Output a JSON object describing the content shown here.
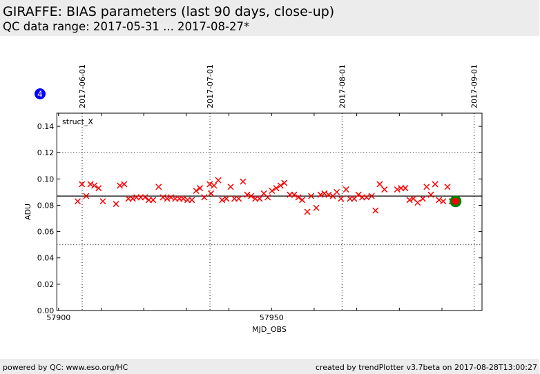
{
  "header": {
    "title": "GIRAFFE: BIAS parameters (last 90 days, close-up)",
    "subtitle": "QC data range: 2017-05-31 ... 2017-08-27*"
  },
  "footer": {
    "left": "powered by QC: www.eso.org/HC",
    "right": "created by trendPlotter v3.7beta on 2017-08-28T13:00:27"
  },
  "badge": {
    "label": "4",
    "color": "#0000ff"
  },
  "chart_data": {
    "type": "scatter",
    "panel_label": "struct_X",
    "xlabel": "MJD_OBS",
    "ylabel": "ADU",
    "xlim": [
      57899.6,
      57999.4
    ],
    "ylim": [
      0,
      0.15
    ],
    "xticks": [
      57900,
      57950
    ],
    "yticks": [
      "0.00",
      "0.02",
      "0.04",
      "0.06",
      "0.08",
      "0.10",
      "0.12",
      "0.14"
    ],
    "date_lines": [
      {
        "label": "2017-06-01",
        "mjd": 57905
      },
      {
        "label": "2017-07-01",
        "mjd": 57935
      },
      {
        "label": "2017-08-01",
        "mjd": 57966
      },
      {
        "label": "2017-09-01",
        "mjd": 57997
      }
    ],
    "mean_line": 0.087,
    "threshold_lines": [
      0.12,
      0.05
    ],
    "marker_color": "#ff0000",
    "highlight": {
      "x": 57993.2,
      "y": 0.083,
      "color": "#ff0000",
      "ring_color": "#008000"
    },
    "x": [
      57904.5,
      57905.5,
      57906.5,
      57907.5,
      57908.4,
      57909.4,
      57910.4,
      57913.5,
      57914.4,
      57915.4,
      57916.4,
      57917.4,
      57918.3,
      57919.3,
      57920.3,
      57921.2,
      57922.2,
      57923.5,
      57924.5,
      57925.5,
      57926.4,
      57927.4,
      57928.4,
      57929.3,
      57930.3,
      57931.3,
      57932.3,
      57933.2,
      57934.2,
      57935.5,
      57935.8,
      57936.5,
      57937.5,
      57938.4,
      57939.4,
      57940.4,
      57941.3,
      57942.3,
      57943.3,
      57944.3,
      57945.2,
      57946.2,
      57947.2,
      57948.2,
      57949.1,
      57950.1,
      57951.1,
      57952.1,
      57953.0,
      57954.3,
      57955.3,
      57956.3,
      57957.2,
      57958.4,
      57959.3,
      57960.5,
      57961.5,
      57962.4,
      57963.4,
      57964.4,
      57965.3,
      57966.3,
      57967.5,
      57968.4,
      57969.4,
      57970.4,
      57971.3,
      57972.3,
      57973.5,
      57974.4,
      57975.4,
      57976.5,
      57979.5,
      57980.4,
      57981.4,
      57982.4,
      57983.3,
      57984.3,
      57985.5,
      57986.4,
      57987.4,
      57988.4,
      57989.3,
      57990.3,
      57991.3,
      57992.3
    ],
    "y": [
      0.083,
      0.096,
      0.087,
      0.096,
      0.095,
      0.093,
      0.083,
      0.081,
      0.095,
      0.096,
      0.085,
      0.085,
      0.086,
      0.086,
      0.086,
      0.084,
      0.084,
      0.094,
      0.086,
      0.085,
      0.086,
      0.085,
      0.085,
      0.085,
      0.084,
      0.084,
      0.091,
      0.093,
      0.086,
      0.096,
      0.089,
      0.095,
      0.099,
      0.084,
      0.085,
      0.094,
      0.085,
      0.085,
      0.098,
      0.088,
      0.087,
      0.085,
      0.085,
      0.089,
      0.086,
      0.091,
      0.093,
      0.095,
      0.097,
      0.088,
      0.088,
      0.086,
      0.084,
      0.075,
      0.087,
      0.078,
      0.088,
      0.089,
      0.088,
      0.087,
      0.09,
      0.085,
      0.092,
      0.085,
      0.085,
      0.088,
      0.086,
      0.086,
      0.087,
      0.076,
      0.096,
      0.092,
      0.092,
      0.093,
      0.093,
      0.084,
      0.085,
      0.082,
      0.085,
      0.094,
      0.088,
      0.096,
      0.084,
      0.083,
      0.094,
      0.083
    ]
  }
}
